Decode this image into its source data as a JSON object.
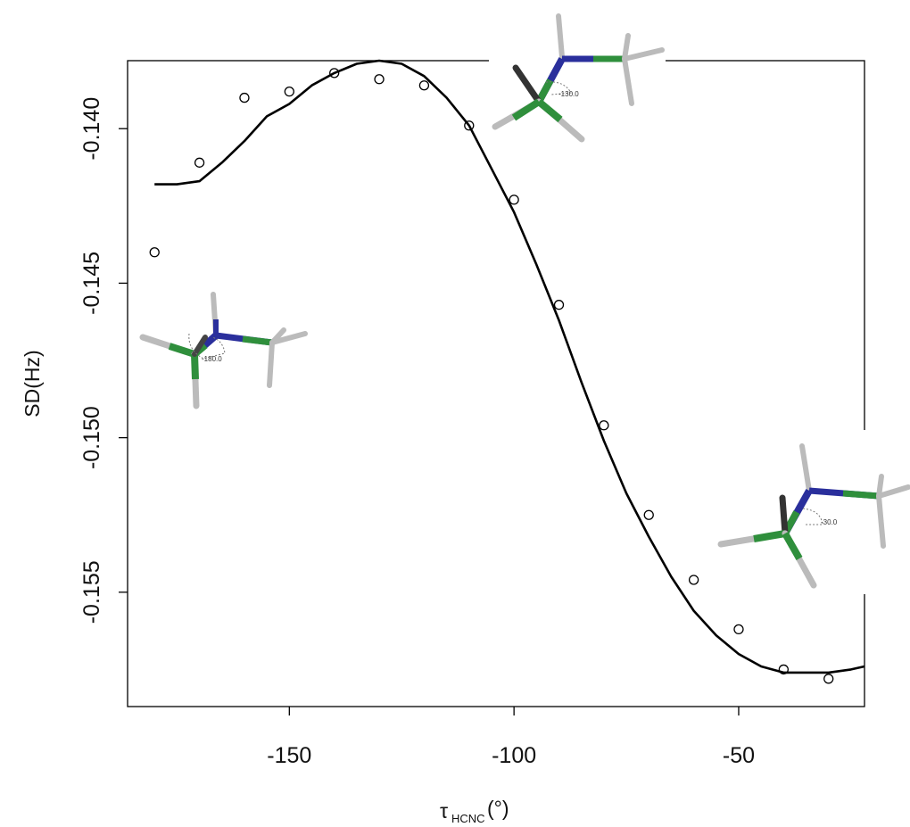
{
  "chart_data": {
    "type": "scatter",
    "xlabel": "τ",
    "xlabel_sub": "HCNC",
    "xlabel_unit": "(°)",
    "ylabel": "SD(Hz)",
    "xlim": [
      -186,
      -22
    ],
    "ylim": [
      -0.1587,
      -0.1378
    ],
    "xticks": [
      -150,
      -100,
      -50
    ],
    "xtick_labels": [
      "-150",
      "-100",
      "-50"
    ],
    "yticks": [
      -0.14,
      -0.145,
      -0.15,
      -0.155
    ],
    "ytick_labels": [
      "-0.140",
      "-0.145",
      "-0.150",
      "-0.155"
    ],
    "grid": false,
    "series": [
      {
        "kind": "points",
        "marker": "open-circle",
        "color": "#000000",
        "x": [
          -180,
          -170,
          -160,
          -150,
          -140,
          -130,
          -120,
          -110,
          -100,
          -90,
          -80,
          -70,
          -60,
          -50,
          -40,
          -30
        ],
        "y": [
          -0.144,
          -0.1411,
          -0.139,
          -0.1388,
          -0.1382,
          -0.1384,
          -0.1386,
          -0.1399,
          -0.1423,
          -0.1457,
          -0.1496,
          -0.1525,
          -0.1546,
          -0.1562,
          -0.1575,
          -0.1578
        ]
      },
      {
        "kind": "fitted-curve",
        "color": "#000000",
        "x": [
          -180,
          -175,
          -170,
          -165,
          -160,
          -155,
          -150,
          -145,
          -140,
          -135,
          -130,
          -125,
          -120,
          -115,
          -110,
          -105,
          -100,
          -95,
          -90,
          -85,
          -80,
          -75,
          -70,
          -65,
          -60,
          -55,
          -50,
          -45,
          -40,
          -35,
          -30,
          -25,
          -22
        ],
        "y": [
          -0.1418,
          -0.1418,
          -0.1417,
          -0.1411,
          -0.1404,
          -0.1396,
          -0.1392,
          -0.1386,
          -0.1382,
          -0.1379,
          -0.1378,
          -0.1379,
          -0.1383,
          -0.139,
          -0.1399,
          -0.1413,
          -0.1427,
          -0.1444,
          -0.1462,
          -0.1482,
          -0.1501,
          -0.1518,
          -0.1532,
          -0.1545,
          -0.1556,
          -0.1564,
          -0.157,
          -0.1574,
          -0.1576,
          -0.1576,
          -0.1576,
          -0.1575,
          -0.1574
        ]
      }
    ],
    "annotations": [
      {
        "label": "-180.0"
      },
      {
        "label": "-130.0"
      },
      {
        "label": "-30.0"
      }
    ]
  }
}
